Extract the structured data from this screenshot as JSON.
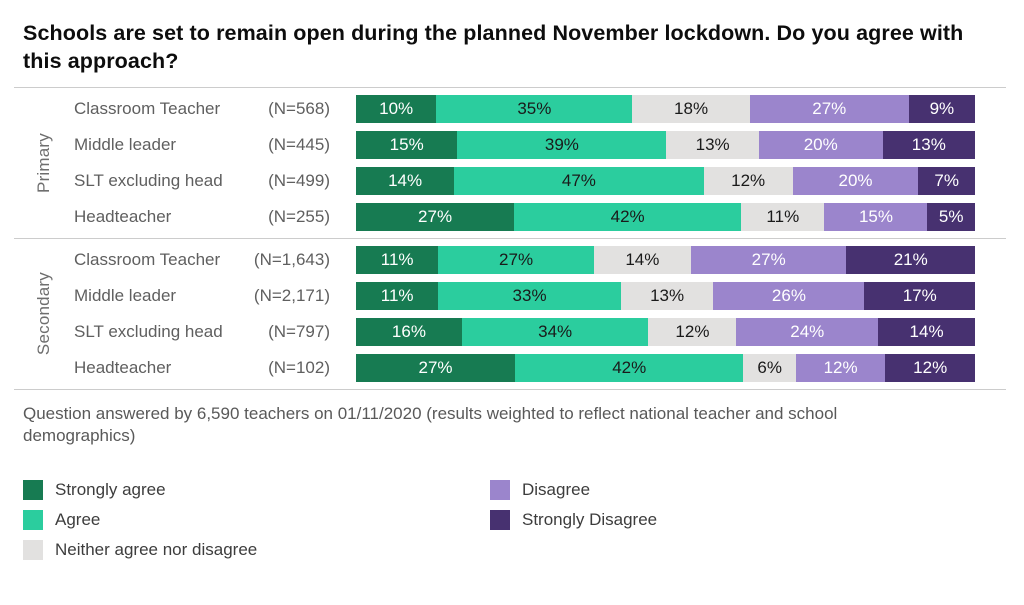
{
  "title": "Schools are set to remain open during the planned November lockdown. Do you agree with this approach?",
  "footnote": "Question answered by 6,590 teachers on 01/11/2020 (results weighted to reflect national teacher and school demographics)",
  "colors": {
    "strongly_agree": "#177B52",
    "agree": "#2BCD9E",
    "neither": "#E2E1E0",
    "disagree": "#9B85CC",
    "strongly_disagree": "#473170",
    "separator_line": "#cccccc",
    "label_gray": "#5f5f5f"
  },
  "chart_data": {
    "type": "bar",
    "orientation": "horizontal",
    "stacked": true,
    "unit": "%",
    "title": "Schools are set to remain open during the planned November lockdown. Do you agree with this approach?",
    "series": [
      {
        "name": "Strongly agree",
        "color": "#177B52",
        "label_color": "#ffffff"
      },
      {
        "name": "Agree",
        "color": "#2BCD9E",
        "label_color": "#1a1a1a"
      },
      {
        "name": "Neither agree nor disagree",
        "color": "#E2E1E0",
        "label_color": "#1a1a1a"
      },
      {
        "name": "Disagree",
        "color": "#9B85CC",
        "label_color": "#ffffff"
      },
      {
        "name": "Strongly Disagree",
        "color": "#473170",
        "label_color": "#ffffff"
      }
    ],
    "groups": [
      {
        "label": "Primary",
        "rows": [
          {
            "role": "Classroom Teacher",
            "n": "(N=568)",
            "values": [
              10,
              35,
              18,
              27,
              9
            ]
          },
          {
            "role": "Middle leader",
            "n": "(N=445)",
            "values": [
              15,
              39,
              13,
              20,
              13
            ]
          },
          {
            "role": "SLT excluding head",
            "n": "(N=499)",
            "values": [
              14,
              47,
              12,
              20,
              7
            ]
          },
          {
            "role": "Headteacher",
            "n": "(N=255)",
            "values": [
              27,
              42,
              11,
              15,
              5
            ]
          }
        ]
      },
      {
        "label": "Secondary",
        "rows": [
          {
            "role": "Classroom Teacher",
            "n": "(N=1,643)",
            "values": [
              11,
              27,
              14,
              27,
              21
            ]
          },
          {
            "role": "Middle leader",
            "n": "(N=2,171)",
            "values": [
              11,
              33,
              13,
              26,
              17
            ]
          },
          {
            "role": "SLT excluding head",
            "n": "(N=797)",
            "values": [
              16,
              34,
              12,
              24,
              14
            ]
          },
          {
            "role": "Headteacher",
            "n": "(N=102)",
            "values": [
              27,
              42,
              6,
              12,
              12
            ]
          }
        ]
      }
    ],
    "legend_position": "bottom",
    "legend_columns": [
      [
        0,
        1,
        2
      ],
      [
        3,
        4
      ]
    ]
  }
}
